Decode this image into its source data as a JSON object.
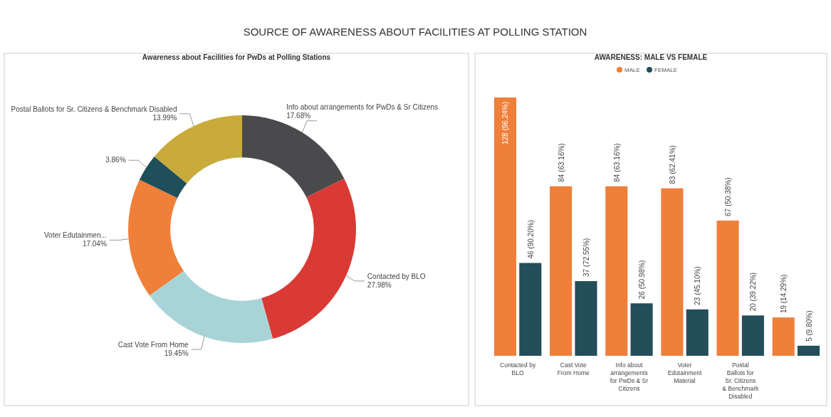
{
  "chart_data": [
    {
      "type": "donut",
      "title": "SOURCE OF AWARENESS ABOUT FACILITIES AT POLLING STATION",
      "subtitle": "Awareness about Facilities for PwDs at Polling Stations",
      "categories": [
        "Info about arrangements for PwDs & Sr Citizens",
        "Contacted by BLO",
        "Cast Vote From Home",
        "Voter Edutainmen...",
        null,
        "Postal Ballots for Sr. Citizens & Benchmark Disabled"
      ],
      "values": [
        17.68,
        27.98,
        19.45,
        17.04,
        3.86,
        13.99
      ],
      "value_labels": [
        "17.68%",
        "27.98%",
        "19.45%",
        "17.04%",
        "3.86%",
        "13.99%"
      ],
      "colors": [
        "#4a4a4d",
        "#d93a35",
        "#a9d4d7",
        "#f07f3a",
        "#1f4f5b",
        "#c8ab3b"
      ]
    },
    {
      "type": "bar",
      "title": "AWARENESS: MALE VS FEMALE",
      "legend": "top",
      "categories": [
        "Contacted by BLO",
        "Cast Vote From Home",
        "Info about arrangements for PwDs & Sr Citizens",
        "Voter Edutainment Material",
        "Postal Ballots for Sr. Citizens & Benchmark Disabled",
        null
      ],
      "series": [
        {
          "name": "MALE",
          "color": "#f07f3a",
          "values": [
            128,
            84,
            84,
            83,
            67,
            19
          ],
          "value_labels": [
            "128 (96.24%)",
            "84 (63.16%)",
            "84 (63.16%)",
            "83 (62.41%)",
            "67 (50.38%)",
            "19 (14.29%)"
          ]
        },
        {
          "name": "FEMALE",
          "color": "#234e5a",
          "values": [
            46,
            37,
            26,
            23,
            20,
            5
          ],
          "value_labels": [
            "46 (90.20%)",
            "37 (72.55%)",
            "26 (50.98%)",
            "23 (45.10%)",
            "20 (39.22%)",
            "5 (9.80%)"
          ]
        }
      ]
    }
  ]
}
